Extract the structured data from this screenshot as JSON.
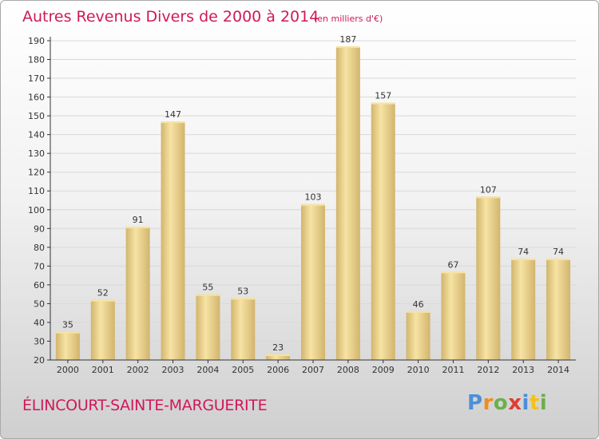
{
  "title": "Autres Revenus Divers de 2000 à 2014",
  "unit_note": "(en milliers d'€)",
  "commune": "ÉLINCOURT-SAINTE-MARGUERITE",
  "logo": {
    "text": "Proxiti",
    "letters": [
      {
        "ch": "P",
        "color": "#4a90d9"
      },
      {
        "ch": "r",
        "color": "#f28c1c"
      },
      {
        "ch": "o",
        "color": "#6ab04c"
      },
      {
        "ch": "x",
        "color": "#e03c31"
      },
      {
        "ch": "i",
        "color": "#4a90d9"
      },
      {
        "ch": "t",
        "color": "#f2c21c"
      },
      {
        "ch": "i",
        "color": "#6ab04c"
      }
    ]
  },
  "colors": {
    "accent": "#d0185a",
    "bar_light": "#f7e3a4",
    "bar_dark": "#d2b56d",
    "grid": "#d9d9d9",
    "axis": "#333333"
  },
  "chart_data": {
    "type": "bar",
    "title": "Autres Revenus Divers de 2000 à 2014",
    "xlabel": "",
    "ylabel": "",
    "ylim": [
      20,
      190
    ],
    "yticks": [
      20,
      30,
      40,
      50,
      60,
      70,
      80,
      90,
      100,
      110,
      120,
      130,
      140,
      150,
      160,
      170,
      180,
      190
    ],
    "grid": true,
    "categories": [
      "2000",
      "2001",
      "2002",
      "2003",
      "2004",
      "2005",
      "2006",
      "2007",
      "2008",
      "2009",
      "2010",
      "2011",
      "2012",
      "2013",
      "2014"
    ],
    "values": [
      35,
      52,
      91,
      147,
      55,
      53,
      23,
      103,
      187,
      157,
      46,
      67,
      107,
      74,
      74
    ]
  }
}
